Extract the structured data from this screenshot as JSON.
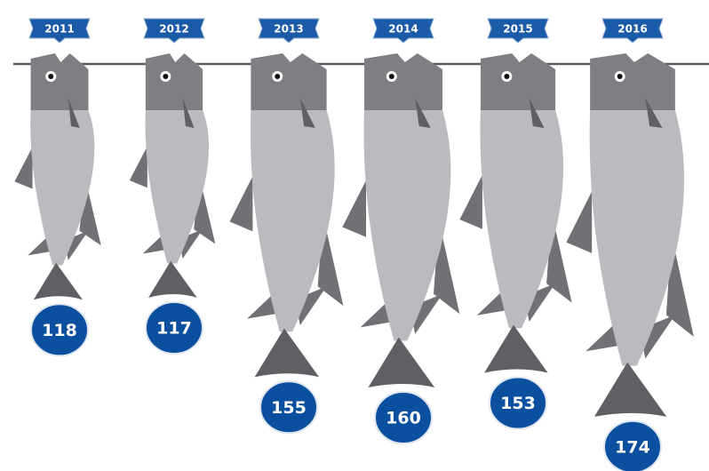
{
  "chart_data": {
    "type": "pictorial",
    "categories": [
      "2011",
      "2012",
      "2013",
      "2014",
      "2015",
      "2016"
    ],
    "values": [
      118,
      117,
      155,
      160,
      153,
      174
    ],
    "color": "#b9bbbe"
  }
}
